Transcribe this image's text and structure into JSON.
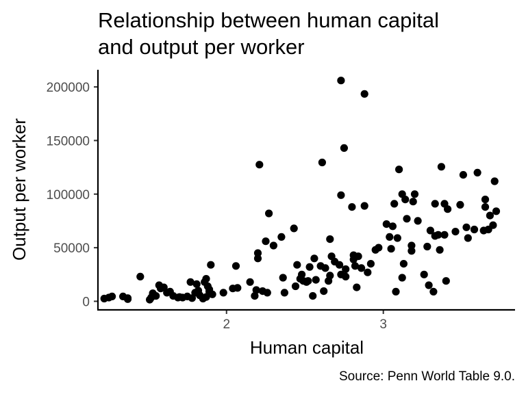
{
  "chart_data": {
    "type": "scatter",
    "title_lines": [
      "Relationship between human capital",
      "and output per worker"
    ],
    "xlabel": "Human capital",
    "ylabel": "Output per worker",
    "caption": "Source: Penn World Table 9.0.",
    "xlim": [
      1.18,
      3.84
    ],
    "ylim": [
      -8000,
      216000
    ],
    "xticks": [
      2,
      3
    ],
    "yticks": [
      0,
      50000,
      100000,
      150000,
      200000
    ],
    "grid": false,
    "legend": "none",
    "point_color": "#000000",
    "points": [
      [
        1.22,
        2500
      ],
      [
        1.25,
        3500
      ],
      [
        1.27,
        4500
      ],
      [
        1.34,
        4500
      ],
      [
        1.37,
        2000
      ],
      [
        1.37,
        3000
      ],
      [
        1.45,
        23000
      ],
      [
        1.51,
        1500
      ],
      [
        1.52,
        3500
      ],
      [
        1.53,
        7500
      ],
      [
        1.55,
        5000
      ],
      [
        1.57,
        15000
      ],
      [
        1.58,
        12000
      ],
      [
        1.6,
        13000
      ],
      [
        1.62,
        8000
      ],
      [
        1.64,
        9000
      ],
      [
        1.66,
        5000
      ],
      [
        1.69,
        3500
      ],
      [
        1.7,
        4000
      ],
      [
        1.72,
        3500
      ],
      [
        1.75,
        4500
      ],
      [
        1.77,
        18000
      ],
      [
        1.78,
        3000
      ],
      [
        1.8,
        8000
      ],
      [
        1.81,
        16000
      ],
      [
        1.82,
        10000
      ],
      [
        1.83,
        5500
      ],
      [
        1.85,
        2500
      ],
      [
        1.86,
        18000
      ],
      [
        1.87,
        4000
      ],
      [
        1.87,
        21000
      ],
      [
        1.88,
        14000
      ],
      [
        1.89,
        9000
      ],
      [
        1.89,
        11000
      ],
      [
        1.9,
        34000
      ],
      [
        1.91,
        6500
      ],
      [
        1.98,
        8000
      ],
      [
        2.04,
        12000
      ],
      [
        2.06,
        33000
      ],
      [
        2.07,
        12500
      ],
      [
        2.15,
        18000
      ],
      [
        2.18,
        5000
      ],
      [
        2.19,
        10500
      ],
      [
        2.2,
        40000
      ],
      [
        2.2,
        45000
      ],
      [
        2.21,
        127500
      ],
      [
        2.23,
        9500
      ],
      [
        2.25,
        56000
      ],
      [
        2.26,
        8000
      ],
      [
        2.27,
        82000
      ],
      [
        2.3,
        52000
      ],
      [
        2.35,
        60000
      ],
      [
        2.36,
        22000
      ],
      [
        2.37,
        8000
      ],
      [
        2.43,
        68000
      ],
      [
        2.44,
        14000
      ],
      [
        2.45,
        34000
      ],
      [
        2.47,
        21000
      ],
      [
        2.48,
        25000
      ],
      [
        2.49,
        19000
      ],
      [
        2.51,
        18000
      ],
      [
        2.52,
        19000
      ],
      [
        2.53,
        32000
      ],
      [
        2.55,
        5000
      ],
      [
        2.56,
        40000
      ],
      [
        2.57,
        20000
      ],
      [
        2.6,
        33000
      ],
      [
        2.61,
        129500
      ],
      [
        2.62,
        9500
      ],
      [
        2.63,
        31000
      ],
      [
        2.65,
        19000
      ],
      [
        2.66,
        24000
      ],
      [
        2.66,
        58000
      ],
      [
        2.67,
        42000
      ],
      [
        2.69,
        37000
      ],
      [
        2.72,
        34000
      ],
      [
        2.73,
        25000
      ],
      [
        2.73,
        99000
      ],
      [
        2.73,
        206000
      ],
      [
        2.75,
        143000
      ],
      [
        2.76,
        23000
      ],
      [
        2.76,
        30000
      ],
      [
        2.8,
        88000
      ],
      [
        2.81,
        39000
      ],
      [
        2.81,
        43000
      ],
      [
        2.82,
        33000
      ],
      [
        2.83,
        13000
      ],
      [
        2.84,
        42000
      ],
      [
        2.86,
        31000
      ],
      [
        2.88,
        89000
      ],
      [
        2.88,
        193500
      ],
      [
        2.9,
        27000
      ],
      [
        2.92,
        35000
      ],
      [
        2.95,
        48000
      ],
      [
        2.97,
        50000
      ],
      [
        3.02,
        72000
      ],
      [
        3.04,
        60000
      ],
      [
        3.05,
        49000
      ],
      [
        3.06,
        70000
      ],
      [
        3.07,
        91000
      ],
      [
        3.08,
        9000
      ],
      [
        3.09,
        59000
      ],
      [
        3.1,
        123000
      ],
      [
        3.12,
        22000
      ],
      [
        3.12,
        100000
      ],
      [
        3.13,
        35000
      ],
      [
        3.14,
        95000
      ],
      [
        3.15,
        77000
      ],
      [
        3.18,
        47000
      ],
      [
        3.18,
        52000
      ],
      [
        3.19,
        93000
      ],
      [
        3.2,
        100000
      ],
      [
        3.22,
        75000
      ],
      [
        3.26,
        25000
      ],
      [
        3.28,
        51000
      ],
      [
        3.29,
        15000
      ],
      [
        3.3,
        66000
      ],
      [
        3.32,
        9000
      ],
      [
        3.33,
        61000
      ],
      [
        3.33,
        91000
      ],
      [
        3.35,
        62000
      ],
      [
        3.36,
        48000
      ],
      [
        3.37,
        125500
      ],
      [
        3.39,
        91000
      ],
      [
        3.39,
        62000
      ],
      [
        3.4,
        19000
      ],
      [
        3.41,
        86000
      ],
      [
        3.46,
        65000
      ],
      [
        3.49,
        90000
      ],
      [
        3.51,
        118000
      ],
      [
        3.53,
        69000
      ],
      [
        3.54,
        59000
      ],
      [
        3.58,
        67000
      ],
      [
        3.6,
        120000
      ],
      [
        3.64,
        66000
      ],
      [
        3.65,
        95000
      ],
      [
        3.65,
        88000
      ],
      [
        3.67,
        67000
      ],
      [
        3.68,
        80000
      ],
      [
        3.7,
        71000
      ],
      [
        3.71,
        112000
      ],
      [
        3.72,
        84000
      ]
    ]
  }
}
